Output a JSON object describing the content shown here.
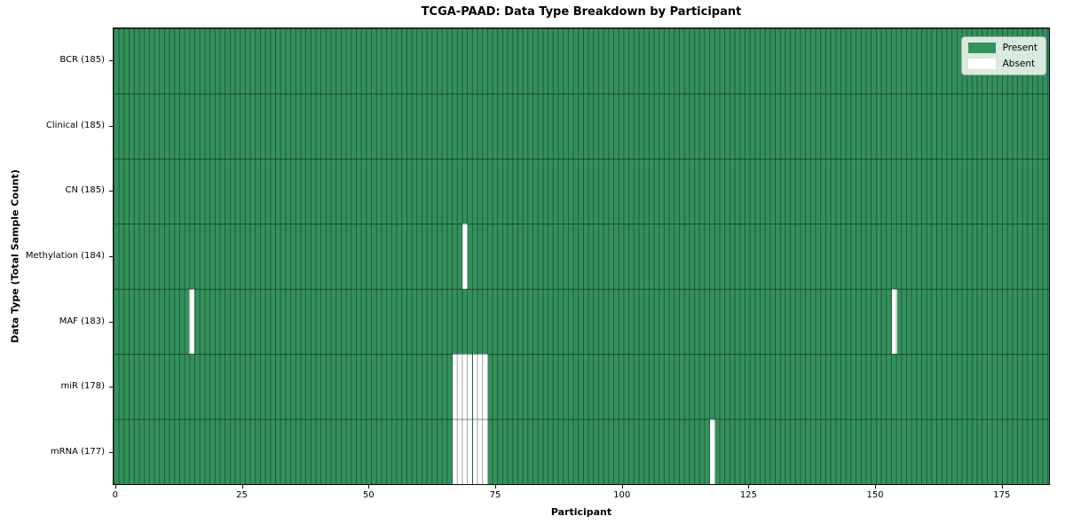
{
  "chart_data": {
    "type": "heatmap",
    "title": "TCGA-PAAD: Data Type Breakdown by Participant",
    "xlabel": "Participant",
    "ylabel": "Data Type (Total Sample Count)",
    "n_participants": 185,
    "xlim": [
      -0.5,
      184.5
    ],
    "x_ticks": [
      0,
      25,
      50,
      75,
      100,
      125,
      150,
      175
    ],
    "grid": "cell-edges",
    "legend_position": "upper-right",
    "legend": [
      {
        "label": "Present",
        "color": "#33915c"
      },
      {
        "label": "Absent",
        "color": "#ffffff"
      }
    ],
    "colors": {
      "present": "#33915c",
      "absent": "#ffffff",
      "cell_edge": "rgba(0,0,0,0.38)",
      "row_edge": "rgba(0,0,0,0.45)",
      "spine": "#0b0b0b"
    },
    "rows": [
      {
        "label": "BCR (185)",
        "data_type": "BCR",
        "total": 185,
        "absent_participants": []
      },
      {
        "label": "Clinical (185)",
        "data_type": "Clinical",
        "total": 185,
        "absent_participants": []
      },
      {
        "label": "CN (185)",
        "data_type": "CN",
        "total": 185,
        "absent_participants": []
      },
      {
        "label": "Methylation (184)",
        "data_type": "Methylation",
        "total": 184,
        "absent_participants": [
          69
        ]
      },
      {
        "label": "MAF (183)",
        "data_type": "MAF",
        "total": 183,
        "absent_participants": [
          15,
          154
        ]
      },
      {
        "label": "miR (178)",
        "data_type": "miR",
        "total": 178,
        "absent_participants": [
          67,
          68,
          69,
          70,
          71,
          72,
          73
        ]
      },
      {
        "label": "mRNA (177)",
        "data_type": "mRNA",
        "total": 177,
        "absent_participants": [
          67,
          68,
          69,
          70,
          71,
          72,
          73,
          118
        ]
      }
    ]
  }
}
